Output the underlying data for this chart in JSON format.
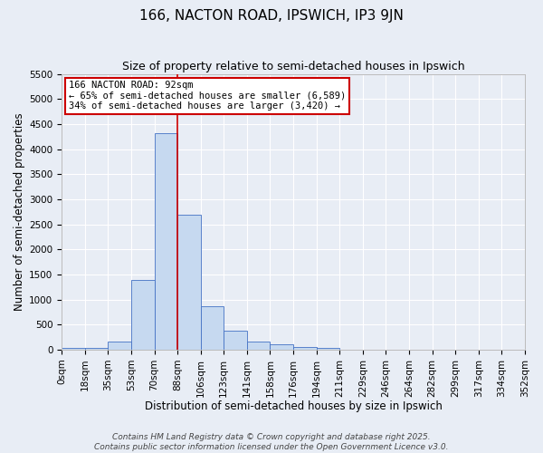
{
  "title": "166, NACTON ROAD, IPSWICH, IP3 9JN",
  "subtitle": "Size of property relative to semi-detached houses in Ipswich",
  "xlabel": "Distribution of semi-detached houses by size in Ipswich",
  "ylabel": "Number of semi-detached properties",
  "bin_edges": [
    0,
    17.6,
    35.2,
    52.8,
    70.4,
    88,
    105.6,
    123.2,
    140.8,
    158.4,
    176,
    193.6,
    211.2,
    228.8,
    246.4,
    264,
    281.6,
    299.2,
    316.8,
    334.4,
    352
  ],
  "bar_heights": [
    30,
    30,
    155,
    1400,
    4320,
    2700,
    860,
    375,
    155,
    105,
    60,
    42,
    5,
    0,
    0,
    0,
    0,
    0,
    0,
    0
  ],
  "tick_labels": [
    "0sqm",
    "18sqm",
    "35sqm",
    "53sqm",
    "70sqm",
    "88sqm",
    "106sqm",
    "123sqm",
    "141sqm",
    "158sqm",
    "176sqm",
    "194sqm",
    "211sqm",
    "229sqm",
    "246sqm",
    "264sqm",
    "282sqm",
    "299sqm",
    "317sqm",
    "334sqm",
    "352sqm"
  ],
  "bar_color": "#c6d9f0",
  "bar_edge_color": "#4472c4",
  "vline_x": 88,
  "vline_color": "#cc0000",
  "annotation_title": "166 NACTON ROAD: 92sqm",
  "annotation_line1": "← 65% of semi-detached houses are smaller (6,589)",
  "annotation_line2": "34% of semi-detached houses are larger (3,420) →",
  "annotation_box_color": "#ffffff",
  "annotation_border_color": "#cc0000",
  "ylim": [
    0,
    5500
  ],
  "yticks": [
    0,
    500,
    1000,
    1500,
    2000,
    2500,
    3000,
    3500,
    4000,
    4500,
    5000,
    5500
  ],
  "background_color": "#e8edf5",
  "grid_color": "#ffffff",
  "footer_line1": "Contains HM Land Registry data © Crown copyright and database right 2025.",
  "footer_line2": "Contains public sector information licensed under the Open Government Licence v3.0.",
  "title_fontsize": 11,
  "subtitle_fontsize": 9,
  "axis_label_fontsize": 8.5,
  "tick_fontsize": 7.5,
  "footer_fontsize": 6.5
}
